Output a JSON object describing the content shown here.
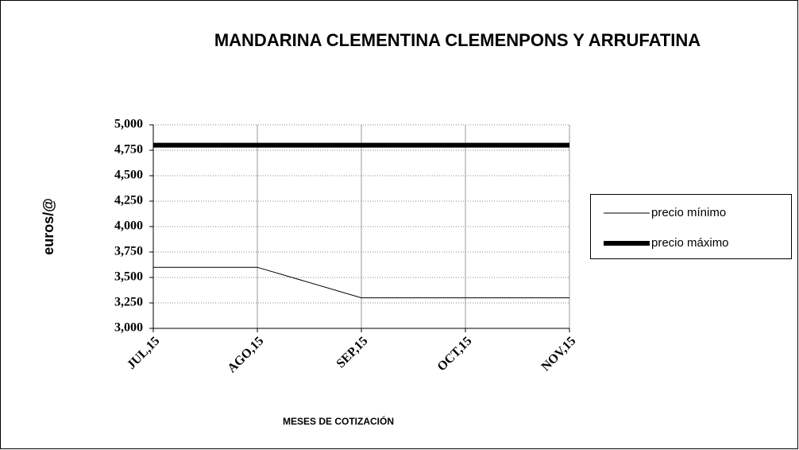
{
  "chart_data": {
    "type": "line",
    "title": "MANDARINA CLEMENTINA CLEMENPONS Y ARRUFATINA",
    "y_label": "euros/@",
    "x_label": "MESES DE COTIZACIÓN",
    "categories": [
      "JUL,15",
      "AGO,15",
      "SEP,15",
      "OCT,15",
      "NOV,15"
    ],
    "series": [
      {
        "name": "precio mínimo",
        "color": "#000000",
        "line_width": 1,
        "values": [
          3.6,
          3.6,
          3.3,
          3.3,
          3.3
        ]
      },
      {
        "name": "precio máximo",
        "color": "#000000",
        "line_width": 6,
        "values": [
          4.8,
          4.8,
          4.8,
          4.8,
          4.8
        ]
      }
    ],
    "ylim": [
      3,
      5
    ],
    "yticks": [
      {
        "value": 3,
        "label": "3,000"
      },
      {
        "value": 3.25,
        "label": "3,250"
      },
      {
        "value": 3.5,
        "label": "3,500"
      },
      {
        "value": 3.75,
        "label": "3,750"
      },
      {
        "value": 4,
        "label": "4,000"
      },
      {
        "value": 4.25,
        "label": "4,250"
      },
      {
        "value": 4.5,
        "label": "4,500"
      },
      {
        "value": 4.75,
        "label": "4,750"
      },
      {
        "value": 5,
        "label": "5,000"
      }
    ],
    "grid": true,
    "legend": "right"
  }
}
